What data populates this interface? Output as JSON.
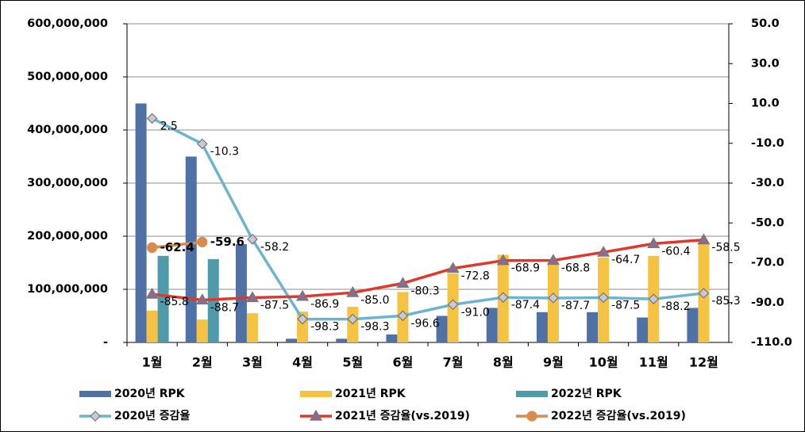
{
  "chart_data": {
    "type": "bar",
    "categories": [
      "1월",
      "2월",
      "3월",
      "4월",
      "5월",
      "6월",
      "7월",
      "8월",
      "9월",
      "10월",
      "11월",
      "12월"
    ],
    "series": [
      {
        "name": "2020년 RPK",
        "type": "bar",
        "color": "#4f71a6",
        "values": [
          450000000,
          350000000,
          185000000,
          7000000,
          7000000,
          15000000,
          50000000,
          65000000,
          57000000,
          57000000,
          47000000,
          65000000
        ]
      },
      {
        "name": "2021년 RPK",
        "type": "bar",
        "color": "#f5c242",
        "values": [
          60000000,
          43000000,
          55000000,
          58000000,
          67000000,
          95000000,
          130000000,
          165000000,
          150000000,
          160000000,
          163000000,
          185000000
        ]
      },
      {
        "name": "2022년 RPK",
        "type": "bar",
        "color": "#4f9bab",
        "values": [
          163000000,
          157000000,
          null,
          null,
          null,
          null,
          null,
          null,
          null,
          null,
          null,
          null
        ]
      },
      {
        "name": "2020년 증감율",
        "type": "line",
        "axis": "y2",
        "color": "#6cb4d0",
        "marker": "diamond",
        "marker_color": "#c9c9d6",
        "values": [
          2.5,
          -10.3,
          -58.2,
          -98.3,
          -98.3,
          -96.6,
          -91.0,
          -87.4,
          -87.7,
          -87.5,
          -88.2,
          -85.3
        ],
        "value_labels": [
          "2.5",
          "-10.3",
          "-58.2",
          "-98.3",
          "-98.3",
          "-96.6",
          "-91.0",
          "-87.4",
          "-87.7",
          "-87.5",
          "-88.2",
          "-85.3"
        ]
      },
      {
        "name": "2021년 증감율(vs.2019)",
        "type": "line",
        "axis": "y2",
        "color": "#e2382a",
        "marker": "triangle",
        "marker_color": "#8d6b8e",
        "values": [
          -85.8,
          -88.7,
          -87.5,
          -86.9,
          -85.0,
          -80.3,
          -72.8,
          -68.9,
          -68.8,
          -64.7,
          -60.4,
          -58.5
        ],
        "value_labels": [
          "-85.8",
          "-88.7",
          "-87.5",
          "-86.9",
          "-85.0",
          "-80.3",
          "-72.8",
          "-68.9",
          "-68.8",
          "-64.7",
          "-60.4",
          "-58.5"
        ]
      },
      {
        "name": "2022년 증감율(vs.2019)",
        "type": "line",
        "axis": "y2",
        "color": "#d98a4c",
        "marker": "circle",
        "marker_color": "#d98a4c",
        "bold_labels": true,
        "values": [
          -62.4,
          -59.6,
          null,
          null,
          null,
          null,
          null,
          null,
          null,
          null,
          null,
          null
        ],
        "value_labels": [
          "-62.4",
          "-59.6",
          null,
          null,
          null,
          null,
          null,
          null,
          null,
          null,
          null,
          null
        ]
      }
    ],
    "ylim": [
      0,
      600000000
    ],
    "yticks": [
      {
        "value": 0,
        "label": "-"
      },
      {
        "value": 100000000,
        "label": "100,000,000"
      },
      {
        "value": 200000000,
        "label": "200,000,000"
      },
      {
        "value": 300000000,
        "label": "300,000,000"
      },
      {
        "value": 400000000,
        "label": "400,000,000"
      },
      {
        "value": 500000000,
        "label": "500,000,000"
      },
      {
        "value": 600000000,
        "label": "600,000,000"
      }
    ],
    "y2lim": [
      -110,
      50
    ],
    "y2ticks": [
      {
        "value": -110,
        "label": "-110.0"
      },
      {
        "value": -90,
        "label": "-90.0"
      },
      {
        "value": -70,
        "label": "-70.0"
      },
      {
        "value": -50,
        "label": "-50.0"
      },
      {
        "value": -30,
        "label": "-30.0"
      },
      {
        "value": -10,
        "label": "-10.0"
      },
      {
        "value": 10,
        "label": "10.0"
      },
      {
        "value": 30,
        "label": "30.0"
      },
      {
        "value": 50,
        "label": "50.0"
      }
    ],
    "grid": true,
    "legend": "bottom"
  }
}
